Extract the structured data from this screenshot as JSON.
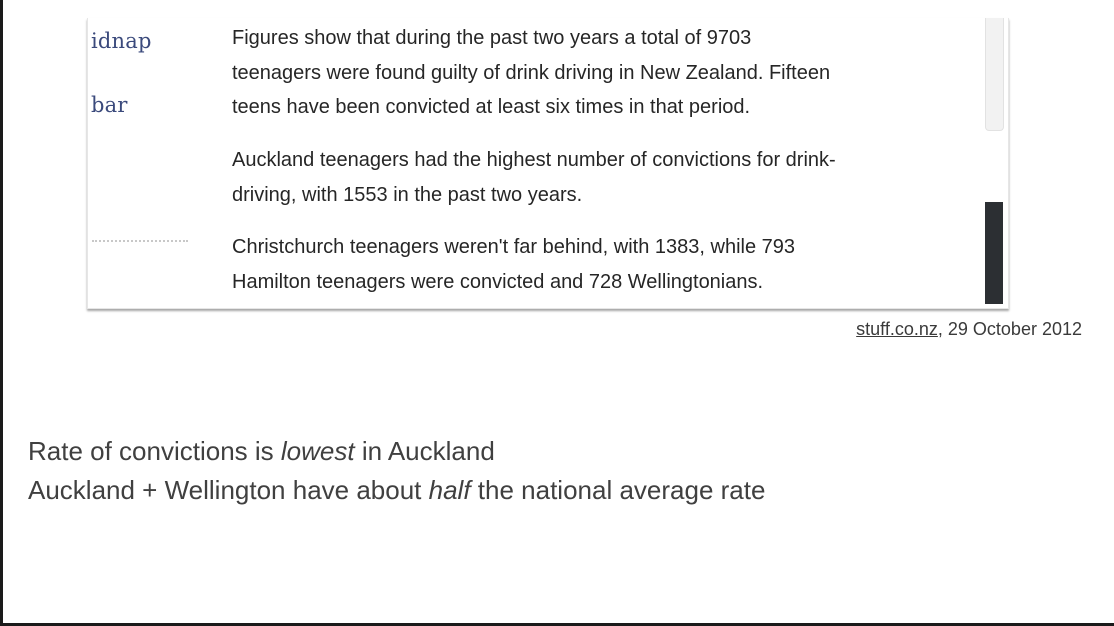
{
  "clipping": {
    "side_links": [
      "idnap",
      "bar"
    ],
    "paragraphs": [
      [
        "Figures show that during the past two years a total of 9703",
        "teenagers were found guilty of drink driving in New Zealand. Fifteen",
        "teens have been convicted at least six times in that period."
      ],
      [
        "Auckland teenagers had the highest number of convictions for drink-",
        "driving, with 1553 in the past two years."
      ],
      [
        "Christchurch teenagers weren't far behind, with 1383, while 793",
        "Hamilton teenagers were convicted and 728 Wellingtonians."
      ]
    ]
  },
  "source": {
    "link_text": "stuff.co.nz",
    "date_text": ", 29 October 2012"
  },
  "notes": [
    {
      "before": "Rate of convictions is ",
      "emphasis": "lowest",
      "after": " in Auckland"
    },
    {
      "before": "Auckland + Wellington have about ",
      "emphasis": "half",
      "after": " the national average rate"
    }
  ]
}
